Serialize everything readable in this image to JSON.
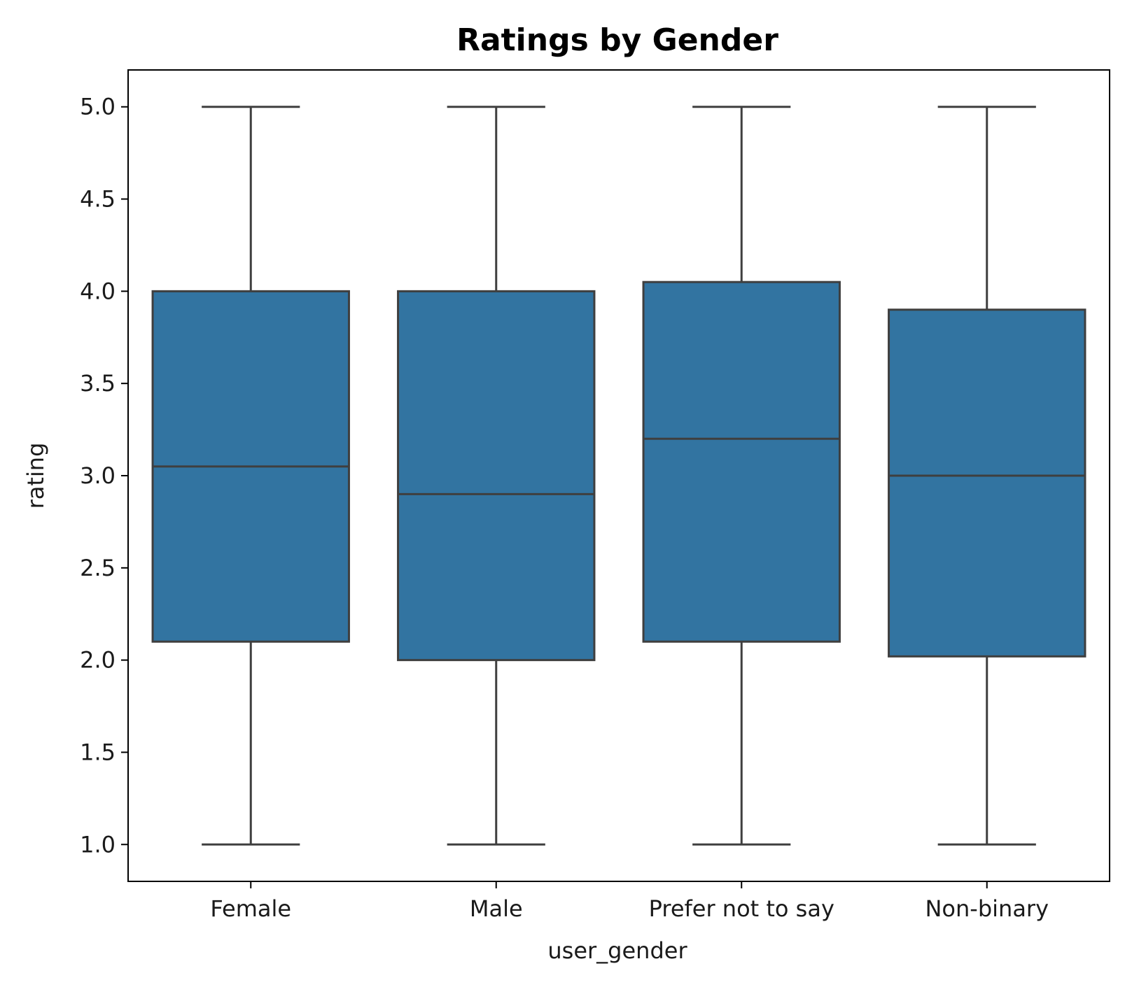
{
  "chart_data": {
    "type": "box",
    "title": "Ratings by Gender",
    "xlabel": "user_gender",
    "ylabel": "rating",
    "ylim": [
      0.8,
      5.2
    ],
    "yticks": [
      1.0,
      1.5,
      2.0,
      2.5,
      3.0,
      3.5,
      4.0,
      4.5,
      5.0
    ],
    "ytick_labels": [
      "1.0",
      "1.5",
      "2.0",
      "2.5",
      "3.0",
      "3.5",
      "4.0",
      "4.5",
      "5.0"
    ],
    "categories": [
      "Female",
      "Male",
      "Prefer not to say",
      "Non-binary"
    ],
    "boxes": [
      {
        "min": 1.0,
        "q1": 2.1,
        "median": 3.05,
        "q3": 4.0,
        "max": 5.0
      },
      {
        "min": 1.0,
        "q1": 2.0,
        "median": 2.9,
        "q3": 4.0,
        "max": 5.0
      },
      {
        "min": 1.0,
        "q1": 2.1,
        "median": 3.2,
        "q3": 4.05,
        "max": 5.0
      },
      {
        "min": 1.0,
        "q1": 2.02,
        "median": 3.0,
        "q3": 3.9,
        "max": 5.0
      }
    ],
    "grid": false,
    "colors": {
      "box_fill": "#3274a1",
      "line": "#3f3f3f",
      "axis": "#000000"
    }
  }
}
